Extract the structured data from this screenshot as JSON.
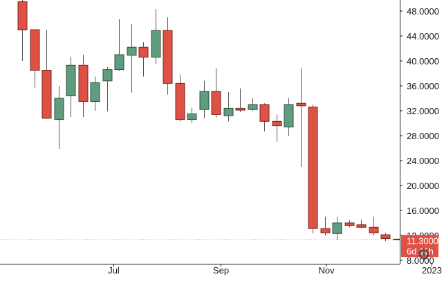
{
  "chart_data": {
    "type": "candlestick",
    "x_range": [
      "2022-05-02",
      "2023-01-02"
    ],
    "ylim": [
      8,
      50
    ],
    "y_ticks": [
      "48.0000",
      "44.0000",
      "40.0000",
      "36.0000",
      "32.0000",
      "28.0000",
      "24.0000",
      "20.0000",
      "16.0000",
      "12.0000",
      "8.0000"
    ],
    "x_ticks": [
      {
        "date": "2022-07-01",
        "label": "Jul"
      },
      {
        "date": "2022-09-01",
        "label": "Sep"
      },
      {
        "date": "2022-11-01",
        "label": "Nov"
      },
      {
        "date": "2023-01-01",
        "label": "2023"
      }
    ],
    "candles": [
      {
        "date": "2022-05-09",
        "open": 49.5,
        "high": 50.5,
        "low": 40.0,
        "close": 45.0
      },
      {
        "date": "2022-05-16",
        "open": 45.0,
        "high": 45.0,
        "low": 35.7,
        "close": 38.5
      },
      {
        "date": "2022-05-23",
        "open": 38.5,
        "high": 45.0,
        "low": 30.7,
        "close": 30.8
      },
      {
        "date": "2022-05-30",
        "open": 30.6,
        "high": 36.0,
        "low": 25.9,
        "close": 34.0
      },
      {
        "date": "2022-06-06",
        "open": 34.4,
        "high": 40.7,
        "low": 31.0,
        "close": 39.3
      },
      {
        "date": "2022-06-13",
        "open": 39.3,
        "high": 41.0,
        "low": 31.0,
        "close": 33.5
      },
      {
        "date": "2022-06-20",
        "open": 33.5,
        "high": 37.5,
        "low": 32.0,
        "close": 36.5
      },
      {
        "date": "2022-06-27",
        "open": 36.8,
        "high": 39.0,
        "low": 31.9,
        "close": 38.6
      },
      {
        "date": "2022-07-04",
        "open": 38.6,
        "high": 46.7,
        "low": 38.4,
        "close": 41.0
      },
      {
        "date": "2022-07-11",
        "open": 40.9,
        "high": 45.9,
        "low": 34.9,
        "close": 42.2
      },
      {
        "date": "2022-07-18",
        "open": 42.2,
        "high": 43.0,
        "low": 37.5,
        "close": 40.6
      },
      {
        "date": "2022-07-25",
        "open": 40.6,
        "high": 48.3,
        "low": 39.5,
        "close": 44.9
      },
      {
        "date": "2022-08-01",
        "open": 44.9,
        "high": 47.0,
        "low": 34.6,
        "close": 36.4
      },
      {
        "date": "2022-08-08",
        "open": 36.4,
        "high": 37.8,
        "low": 30.3,
        "close": 30.6
      },
      {
        "date": "2022-08-15",
        "open": 30.6,
        "high": 32.5,
        "low": 30.0,
        "close": 31.5
      },
      {
        "date": "2022-08-22",
        "open": 32.2,
        "high": 36.8,
        "low": 30.8,
        "close": 35.1
      },
      {
        "date": "2022-08-29",
        "open": 35.1,
        "high": 38.8,
        "low": 30.9,
        "close": 31.4
      },
      {
        "date": "2022-09-05",
        "open": 31.2,
        "high": 35.0,
        "low": 30.3,
        "close": 32.4
      },
      {
        "date": "2022-09-12",
        "open": 32.4,
        "high": 35.6,
        "low": 31.8,
        "close": 32.1
      },
      {
        "date": "2022-09-19",
        "open": 32.2,
        "high": 34.0,
        "low": 31.9,
        "close": 33.0
      },
      {
        "date": "2022-09-26",
        "open": 33.0,
        "high": 33.2,
        "low": 28.7,
        "close": 30.3
      },
      {
        "date": "2022-10-03",
        "open": 30.3,
        "high": 31.4,
        "low": 27.0,
        "close": 29.6
      },
      {
        "date": "2022-10-10",
        "open": 29.4,
        "high": 34.0,
        "low": 28.0,
        "close": 33.0
      },
      {
        "date": "2022-10-17",
        "open": 33.2,
        "high": 38.8,
        "low": 23.0,
        "close": 32.8
      },
      {
        "date": "2022-10-24",
        "open": 32.6,
        "high": 33.0,
        "low": 12.3,
        "close": 13.1
      },
      {
        "date": "2022-10-31",
        "open": 13.1,
        "high": 15.0,
        "low": 12.0,
        "close": 12.4
      },
      {
        "date": "2022-11-07",
        "open": 12.3,
        "high": 15.0,
        "low": 11.3,
        "close": 14.0
      },
      {
        "date": "2022-11-14",
        "open": 14.0,
        "high": 14.4,
        "low": 13.3,
        "close": 13.6
      },
      {
        "date": "2022-11-21",
        "open": 13.7,
        "high": 14.5,
        "low": 13.2,
        "close": 13.3
      },
      {
        "date": "2022-11-28",
        "open": 13.3,
        "high": 15.0,
        "low": 12.0,
        "close": 12.4
      },
      {
        "date": "2022-12-05",
        "open": 12.1,
        "high": 12.4,
        "low": 11.1,
        "close": 11.5
      },
      {
        "date": "2022-12-12",
        "open": 11.4,
        "high": 11.5,
        "low": 11.2,
        "close": 11.3
      }
    ],
    "last_price": {
      "value": 11.3,
      "label": "11.3000",
      "countdown": "6d 11h"
    },
    "colors": {
      "up": "#5f9d7e",
      "down": "#de5246",
      "up_border": "#2e4d40",
      "down_border": "#7a231c",
      "wick": "#555555",
      "badge": "#de5246",
      "axis": "#131722",
      "price_line": "#9e9e9e"
    },
    "grid": false,
    "legend": "none"
  },
  "ui": {
    "settings_icon": "gear-icon",
    "settings_glyph": "⚙"
  }
}
